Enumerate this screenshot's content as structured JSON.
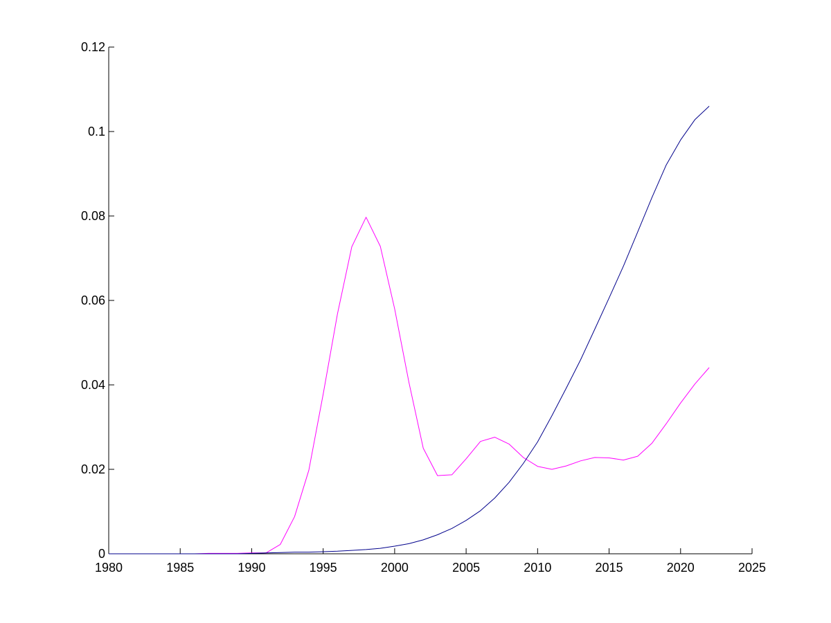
{
  "chart_data": {
    "type": "line",
    "title": "",
    "xlabel": "",
    "ylabel": "",
    "xlim": [
      1980,
      2025
    ],
    "ylim": [
      0,
      0.12
    ],
    "xticks": [
      1980,
      1985,
      1990,
      1995,
      2000,
      2005,
      2010,
      2015,
      2020,
      2025
    ],
    "xtick_labels": [
      "1980",
      "1985",
      "1990",
      "1995",
      "2000",
      "2005",
      "2010",
      "2015",
      "2020",
      "2025"
    ],
    "yticks": [
      0,
      0.02,
      0.04,
      0.06,
      0.08,
      0.1,
      0.12
    ],
    "ytick_labels": [
      "0",
      "0.02",
      "0.04",
      "0.06",
      "0.08",
      "0.1",
      "0.12"
    ],
    "grid": false,
    "legend": false,
    "series": [
      {
        "color": "#ff00ff",
        "points": [
          [
            1980,
            0
          ],
          [
            1981,
            0
          ],
          [
            1982,
            0
          ],
          [
            1983,
            0
          ],
          [
            1984,
            0
          ],
          [
            1985,
            0
          ],
          [
            1986,
            0
          ],
          [
            1987,
            0.0001
          ],
          [
            1988,
            0.0001
          ],
          [
            1989,
            0.0001
          ],
          [
            1990,
            0.0002
          ],
          [
            1991,
            0.0002
          ],
          [
            1992,
            0.0022
          ],
          [
            1993,
            0.0088
          ],
          [
            1994,
            0.0198
          ],
          [
            1995,
            0.0378
          ],
          [
            1996,
            0.0568
          ],
          [
            1997,
            0.0727
          ],
          [
            1998,
            0.0797
          ],
          [
            1999,
            0.0728
          ],
          [
            2000,
            0.058
          ],
          [
            2001,
            0.0406
          ],
          [
            2002,
            0.025
          ],
          [
            2003,
            0.0185
          ],
          [
            2004,
            0.0187
          ],
          [
            2005,
            0.0225
          ],
          [
            2006,
            0.0266
          ],
          [
            2007,
            0.0276
          ],
          [
            2008,
            0.026
          ],
          [
            2009,
            0.0228
          ],
          [
            2010,
            0.0207
          ],
          [
            2011,
            0.02
          ],
          [
            2012,
            0.0208
          ],
          [
            2013,
            0.022
          ],
          [
            2014,
            0.0228
          ],
          [
            2015,
            0.0227
          ],
          [
            2016,
            0.0222
          ],
          [
            2017,
            0.0231
          ],
          [
            2018,
            0.0262
          ],
          [
            2019,
            0.0308
          ],
          [
            2020,
            0.0357
          ],
          [
            2021,
            0.0402
          ],
          [
            2022,
            0.0441
          ]
        ]
      },
      {
        "color": "#00008b",
        "points": [
          [
            1980,
            0
          ],
          [
            1981,
            0
          ],
          [
            1982,
            0
          ],
          [
            1983,
            0
          ],
          [
            1984,
            0
          ],
          [
            1985,
            0
          ],
          [
            1986,
            0
          ],
          [
            1987,
            0
          ],
          [
            1988,
            0
          ],
          [
            1989,
            0
          ],
          [
            1990,
            0.0001
          ],
          [
            1991,
            0.0002
          ],
          [
            1992,
            0.0003
          ],
          [
            1993,
            0.0004
          ],
          [
            1994,
            0.0004
          ],
          [
            1995,
            0.0005
          ],
          [
            1996,
            0.0006
          ],
          [
            1997,
            0.0008
          ],
          [
            1998,
            0.001
          ],
          [
            1999,
            0.0013
          ],
          [
            2000,
            0.0018
          ],
          [
            2001,
            0.0024
          ],
          [
            2002,
            0.0033
          ],
          [
            2003,
            0.0045
          ],
          [
            2004,
            0.006
          ],
          [
            2005,
            0.0079
          ],
          [
            2006,
            0.0102
          ],
          [
            2007,
            0.0132
          ],
          [
            2008,
            0.0169
          ],
          [
            2009,
            0.0214
          ],
          [
            2010,
            0.0265
          ],
          [
            2011,
            0.0327
          ],
          [
            2012,
            0.0392
          ],
          [
            2013,
            0.0459
          ],
          [
            2014,
            0.0532
          ],
          [
            2015,
            0.0606
          ],
          [
            2016,
            0.0681
          ],
          [
            2017,
            0.0762
          ],
          [
            2018,
            0.0844
          ],
          [
            2019,
            0.0921
          ],
          [
            2020,
            0.098
          ],
          [
            2021,
            0.1028
          ],
          [
            2022,
            0.106
          ]
        ]
      }
    ]
  }
}
